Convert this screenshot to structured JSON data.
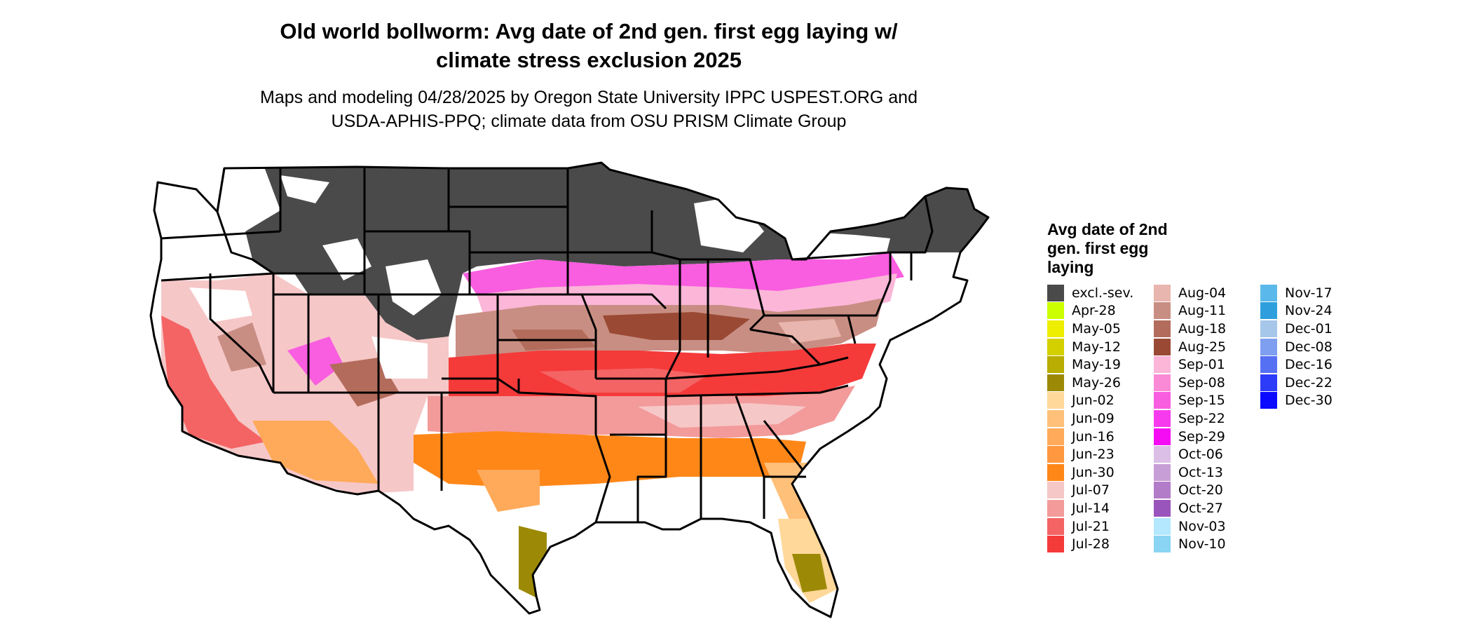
{
  "title_line1": "Old world bollworm: Avg date of 2nd gen. first egg laying w/",
  "title_line2": "climate stress exclusion 2025",
  "subtitle_line1": "Maps and modeling 04/28/2025 by Oregon State University IPPC USPEST.ORG and",
  "subtitle_line2": "USDA-APHIS-PPQ; climate data from OSU PRISM Climate Group",
  "legend": {
    "title_line1": "Avg date of 2nd",
    "title_line2": "gen. first egg",
    "title_line3": "laying",
    "items": [
      {
        "label": "excl.-sev.",
        "color": "#4a4a4a"
      },
      {
        "label": "Apr-28",
        "color": "#ccff00"
      },
      {
        "label": "May-05",
        "color": "#eeee00"
      },
      {
        "label": "May-12",
        "color": "#d4d000"
      },
      {
        "label": "May-19",
        "color": "#b8ad00"
      },
      {
        "label": "May-26",
        "color": "#9c8a06"
      },
      {
        "label": "Jun-02",
        "color": "#ffd89a"
      },
      {
        "label": "Jun-09",
        "color": "#ffc07a"
      },
      {
        "label": "Jun-16",
        "color": "#ffaa5a"
      },
      {
        "label": "Jun-23",
        "color": "#ff983e"
      },
      {
        "label": "Jun-30",
        "color": "#ff8718"
      },
      {
        "label": "Jul-07",
        "color": "#f6c7c7"
      },
      {
        "label": "Jul-14",
        "color": "#f39a9a"
      },
      {
        "label": "Jul-21",
        "color": "#f46464"
      },
      {
        "label": "Jul-28",
        "color": "#f53a3a"
      },
      {
        "label": "Aug-04",
        "color": "#e8b6ae"
      },
      {
        "label": "Aug-11",
        "color": "#c98e83"
      },
      {
        "label": "Aug-18",
        "color": "#b36c5c"
      },
      {
        "label": "Aug-25",
        "color": "#9a4a34"
      },
      {
        "label": "Sep-01",
        "color": "#fbb6d8"
      },
      {
        "label": "Sep-08",
        "color": "#fa8ad6"
      },
      {
        "label": "Sep-15",
        "color": "#f95de0"
      },
      {
        "label": "Sep-22",
        "color": "#f83aee"
      },
      {
        "label": "Sep-29",
        "color": "#f50cf5"
      },
      {
        "label": "Oct-06",
        "color": "#dbbfe6"
      },
      {
        "label": "Oct-13",
        "color": "#c89ed6"
      },
      {
        "label": "Oct-20",
        "color": "#b27cc9"
      },
      {
        "label": "Oct-27",
        "color": "#9a55bc"
      },
      {
        "label": "Nov-03",
        "color": "#b3e8ff"
      },
      {
        "label": "Nov-10",
        "color": "#89d5f3"
      },
      {
        "label": "Nov-17",
        "color": "#5ab9ea"
      },
      {
        "label": "Nov-24",
        "color": "#2e9fdc"
      },
      {
        "label": "Dec-01",
        "color": "#a6c6ea"
      },
      {
        "label": "Dec-08",
        "color": "#7e9ff0"
      },
      {
        "label": "Dec-16",
        "color": "#5670f4"
      },
      {
        "label": "Dec-22",
        "color": "#2d3cf8"
      },
      {
        "label": "Dec-30",
        "color": "#0a0aff"
      }
    ]
  }
}
